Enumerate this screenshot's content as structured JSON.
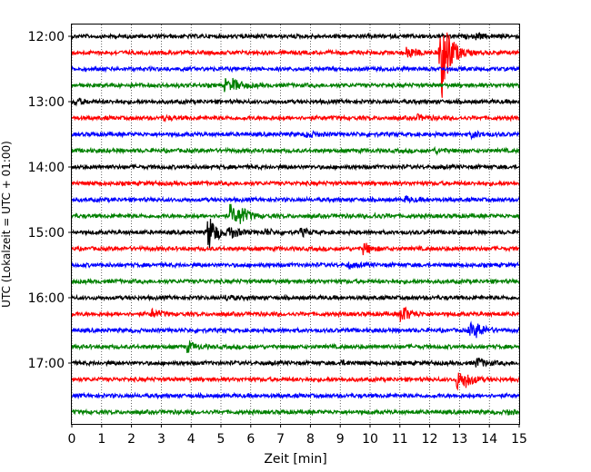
{
  "chart_data": {
    "type": "line",
    "title": "",
    "xlabel": "Zeit  [min]",
    "ylabel": "UTC (Lokalzeit = UTC + 01:00)",
    "xlim": [
      0,
      15
    ],
    "x_ticks": [
      "0",
      "1",
      "2",
      "3",
      "4",
      "5",
      "6",
      "7",
      "8",
      "9",
      "10",
      "11",
      "12",
      "13",
      "14",
      "15"
    ],
    "y_tick_labels": [
      "12:00",
      "13:00",
      "14:00",
      "15:00",
      "16:00",
      "17:00"
    ],
    "grid": "vertical-dotted",
    "trace_colors": [
      "#000000",
      "#ff0000",
      "#0000ff",
      "#008000"
    ],
    "series": [
      {
        "trace_start": "12:00",
        "events": [
          {
            "t": 13.6,
            "amp": 0.25
          }
        ]
      },
      {
        "trace_start": "12:15",
        "events": [
          {
            "t": 11.25,
            "amp": 0.7
          },
          {
            "t": 12.35,
            "amp": 1.6
          },
          {
            "t": 12.45,
            "amp": 3.6
          }
        ]
      },
      {
        "trace_start": "12:30",
        "events": []
      },
      {
        "trace_start": "12:45",
        "events": [
          {
            "t": 5.15,
            "amp": 0.6
          },
          {
            "t": 5.45,
            "amp": 0.4
          }
        ]
      },
      {
        "trace_start": "13:00",
        "events": [
          {
            "t": 0.15,
            "amp": 0.3
          }
        ]
      },
      {
        "trace_start": "13:15",
        "events": [
          {
            "t": 3.1,
            "amp": 0.2
          },
          {
            "t": 11.6,
            "amp": 0.25
          }
        ]
      },
      {
        "trace_start": "13:30",
        "events": [
          {
            "t": 7.9,
            "amp": 0.3
          },
          {
            "t": 13.45,
            "amp": 0.3
          }
        ]
      },
      {
        "trace_start": "13:45",
        "events": [
          {
            "t": 12.2,
            "amp": 0.2
          }
        ]
      },
      {
        "trace_start": "14:00",
        "events": []
      },
      {
        "trace_start": "14:15",
        "events": []
      },
      {
        "trace_start": "14:30",
        "events": [
          {
            "t": 11.2,
            "amp": 0.25
          }
        ]
      },
      {
        "trace_start": "14:45",
        "events": [
          {
            "t": 5.35,
            "amp": 1.1
          },
          {
            "t": 5.65,
            "amp": 0.8
          },
          {
            "t": 10.1,
            "amp": 0.2
          }
        ]
      },
      {
        "trace_start": "15:00",
        "events": [
          {
            "t": 4.6,
            "amp": 1.8
          },
          {
            "t": 5.3,
            "amp": 0.6
          },
          {
            "t": 6.5,
            "amp": 0.3
          },
          {
            "t": 7.7,
            "amp": 0.35
          }
        ]
      },
      {
        "trace_start": "15:15",
        "events": [
          {
            "t": 9.8,
            "amp": 0.6
          }
        ]
      },
      {
        "trace_start": "15:30",
        "events": [
          {
            "t": 9.3,
            "amp": 0.25
          }
        ]
      },
      {
        "trace_start": "15:45",
        "events": []
      },
      {
        "trace_start": "16:00",
        "events": [
          {
            "t": 5.2,
            "amp": 0.2
          }
        ]
      },
      {
        "trace_start": "16:15",
        "events": [
          {
            "t": 2.7,
            "amp": 0.4
          },
          {
            "t": 11.05,
            "amp": 1.0
          }
        ]
      },
      {
        "trace_start": "16:30",
        "events": [
          {
            "t": 13.35,
            "amp": 0.7
          },
          {
            "t": 13.6,
            "amp": 0.5
          }
        ]
      },
      {
        "trace_start": "16:45",
        "events": [
          {
            "t": 3.9,
            "amp": 0.5
          }
        ]
      },
      {
        "trace_start": "17:00",
        "events": [
          {
            "t": 13.6,
            "amp": 0.5
          },
          {
            "t": 9.0,
            "amp": 0.2
          }
        ]
      },
      {
        "trace_start": "17:15",
        "events": [
          {
            "t": 12.95,
            "amp": 0.9
          },
          {
            "t": 13.2,
            "amp": 0.5
          }
        ]
      },
      {
        "trace_start": "17:30",
        "events": []
      },
      {
        "trace_start": "17:45",
        "events": [
          {
            "t": 14.6,
            "amp": 0.2
          }
        ]
      }
    ]
  }
}
